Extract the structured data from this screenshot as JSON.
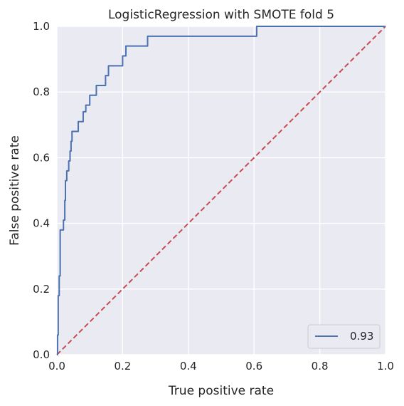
{
  "chart_data": {
    "type": "line",
    "title": "LogisticRegression with SMOTE fold 5",
    "xlabel": "True positive rate",
    "ylabel": "False positive rate",
    "xlim": [
      0,
      1
    ],
    "ylim": [
      0,
      1
    ],
    "grid": true,
    "legend_position": "lower right",
    "x_ticks": [
      "0.0",
      "0.2",
      "0.4",
      "0.6",
      "0.8",
      "1.0"
    ],
    "y_ticks": [
      "0.0",
      "0.2",
      "0.4",
      "0.6",
      "0.8",
      "1.0"
    ],
    "series": [
      {
        "name": "0.93",
        "color": "#4c72b0",
        "style": "solid",
        "x": [
          0,
          0.002,
          0.002,
          0.004,
          0.004,
          0.007,
          0.007,
          0.01,
          0.01,
          0.02,
          0.02,
          0.024,
          0.024,
          0.026,
          0.026,
          0.03,
          0.03,
          0.036,
          0.036,
          0.04,
          0.04,
          0.043,
          0.043,
          0.046,
          0.046,
          0.065,
          0.065,
          0.08,
          0.08,
          0.088,
          0.088,
          0.1,
          0.1,
          0.12,
          0.12,
          0.148,
          0.148,
          0.157,
          0.157,
          0.2,
          0.2,
          0.21,
          0.21,
          0.276,
          0.276,
          0.608,
          0.608,
          1.0
        ],
        "y": [
          0,
          0,
          0.06,
          0.06,
          0.18,
          0.18,
          0.24,
          0.24,
          0.38,
          0.38,
          0.41,
          0.41,
          0.47,
          0.47,
          0.53,
          0.53,
          0.56,
          0.56,
          0.59,
          0.59,
          0.62,
          0.62,
          0.65,
          0.65,
          0.68,
          0.68,
          0.71,
          0.71,
          0.74,
          0.74,
          0.76,
          0.76,
          0.79,
          0.79,
          0.82,
          0.82,
          0.85,
          0.85,
          0.88,
          0.88,
          0.91,
          0.91,
          0.94,
          0.94,
          0.97,
          0.97,
          1.0,
          1.0
        ]
      },
      {
        "name": "",
        "color": "#c44e52",
        "style": "dashed",
        "x": [
          0,
          1
        ],
        "y": [
          0,
          1
        ]
      }
    ]
  },
  "colors": {
    "plot_background": "#eaeaf2",
    "grid": "#ffffff",
    "text": "#262626"
  }
}
